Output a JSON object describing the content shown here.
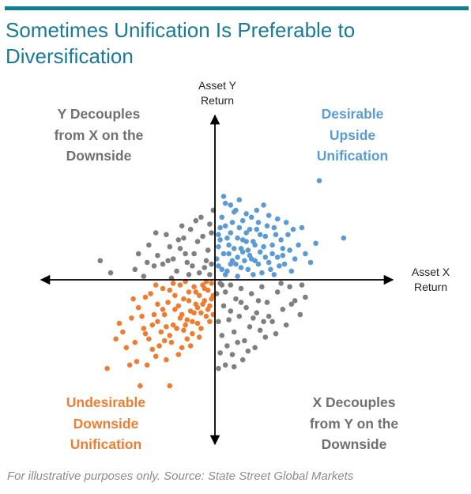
{
  "title": "Sometimes Unification Is Preferable to Diversification",
  "footer": "For illustrative purposes only. Source: State Street Global Markets",
  "colors": {
    "accent_bar": "#117f8f",
    "title": "#1a7a96",
    "gray": "#7f7f7f",
    "blue": "#5b9bd5",
    "orange": "#ed7d31"
  },
  "axes": {
    "y_label": [
      "Asset Y",
      "Return"
    ],
    "x_label": [
      "Asset X",
      "Return"
    ]
  },
  "quadrants": {
    "top_left": [
      "Y Decouples",
      "from X on the",
      "Downside"
    ],
    "top_right": [
      "Desirable",
      "Upside",
      "Unification"
    ],
    "bottom_left": [
      "Undesirable",
      "Downside",
      "Unification"
    ],
    "bottom_right": [
      "X Decouples",
      "from Y on the",
      "Downside"
    ]
  },
  "chart_data": {
    "type": "scatter",
    "title": "Sometimes Unification Is Preferable to Diversification",
    "xlabel": "Asset X Return",
    "ylabel": "Asset Y Return",
    "xlim": [
      -10,
      10
    ],
    "ylim": [
      -10,
      10
    ],
    "grid": false,
    "legend": "none",
    "series": [
      {
        "color": "#5b9bd5",
        "points": [
          [
            6.0,
            5.7
          ],
          [
            7.4,
            2.4
          ],
          [
            5.8,
            2.1
          ],
          [
            5.2,
            1.5
          ],
          [
            4.6,
            1.2
          ],
          [
            4.2,
            2.6
          ],
          [
            3.9,
            1.8
          ],
          [
            3.6,
            1.3
          ],
          [
            3.3,
            2.0
          ],
          [
            3.1,
            1.0
          ],
          [
            2.9,
            2.5
          ],
          [
            2.6,
            1.6
          ],
          [
            2.4,
            2.9
          ],
          [
            2.2,
            2.2
          ],
          [
            2.0,
            1.4
          ],
          [
            1.8,
            2.7
          ],
          [
            1.6,
            3.4
          ],
          [
            1.5,
            1.8
          ],
          [
            1.3,
            2.4
          ],
          [
            1.1,
            3.9
          ],
          [
            1.0,
            1.1
          ],
          [
            0.8,
            2.0
          ],
          [
            0.6,
            3.1
          ],
          [
            0.5,
            1.5
          ],
          [
            0.3,
            2.3
          ],
          [
            0.2,
            0.8
          ],
          [
            0.4,
            3.6
          ],
          [
            0.7,
            0.5
          ],
          [
            1.2,
            0.9
          ],
          [
            1.9,
            0.6
          ],
          [
            2.3,
            1.1
          ],
          [
            2.7,
            0.4
          ],
          [
            0.9,
            4.3
          ],
          [
            0.5,
            4.8
          ],
          [
            1.4,
            4.6
          ],
          [
            2.1,
            3.6
          ],
          [
            2.5,
            3.3
          ],
          [
            3.0,
            3.1
          ],
          [
            3.4,
            3.0
          ],
          [
            3.8,
            2.3
          ],
          [
            4.3,
            1.7
          ],
          [
            1.7,
            1.1
          ],
          [
            0.2,
            1.9
          ],
          [
            0.9,
            2.7
          ],
          [
            1.6,
            2.3
          ],
          [
            2.8,
            1.9
          ],
          [
            3.5,
            2.6
          ],
          [
            4.0,
            0.9
          ],
          [
            0.6,
            0.3
          ],
          [
            1.3,
            0.2
          ],
          [
            2.2,
            0.3
          ],
          [
            3.2,
            0.6
          ],
          [
            0.3,
            3.0
          ],
          [
            1.0,
            3.3
          ],
          [
            1.8,
            3.8
          ],
          [
            2.4,
            4.0
          ],
          [
            3.1,
            3.7
          ],
          [
            4.1,
            3.3
          ],
          [
            4.8,
            2.0
          ],
          [
            5.5,
            1.0
          ],
          [
            0.1,
            1.2
          ],
          [
            0.4,
            0.6
          ],
          [
            0.8,
            1.5
          ],
          [
            1.5,
            0.7
          ],
          [
            2.6,
            2.6
          ],
          [
            3.3,
            1.5
          ],
          [
            3.7,
            0.8
          ],
          [
            1.1,
            1.8
          ],
          [
            1.9,
            1.7
          ],
          [
            2.3,
            2.0
          ],
          [
            2.9,
            1.3
          ],
          [
            0.7,
            2.4
          ],
          [
            1.4,
            3.0
          ],
          [
            2.0,
            2.9
          ],
          [
            4.5,
            2.9
          ],
          [
            5.0,
            3.0
          ],
          [
            3.6,
            3.5
          ],
          [
            2.8,
            4.3
          ],
          [
            1.2,
            4.0
          ],
          [
            0.6,
            4.4
          ],
          [
            3.9,
            1.4
          ],
          [
            4.4,
            0.5
          ],
          [
            2.1,
            1.2
          ],
          [
            1.6,
            1.6
          ],
          [
            0.9,
            0.9
          ],
          [
            0.2,
            2.6
          ],
          [
            3.4,
            0.3
          ],
          [
            2.5,
            0.9
          ],
          [
            1.8,
            2.2
          ],
          [
            1.3,
            1.3
          ]
        ]
      },
      {
        "color": "#ed7d31",
        "points": [
          [
            -6.2,
            -5.1
          ],
          [
            -4.3,
            -6.1
          ],
          [
            -2.6,
            -6.1
          ],
          [
            -5.5,
            -2.5
          ],
          [
            -5.1,
            -3.9
          ],
          [
            -4.6,
            -3.6
          ],
          [
            -4.2,
            -2.1
          ],
          [
            -4.0,
            -1.0
          ],
          [
            -3.8,
            -3.4
          ],
          [
            -3.6,
            -2.6
          ],
          [
            -3.4,
            -4.4
          ],
          [
            -3.3,
            -1.4
          ],
          [
            -3.1,
            -3.0
          ],
          [
            -2.9,
            -2.0
          ],
          [
            -2.8,
            -4.6
          ],
          [
            -2.6,
            -0.6
          ],
          [
            -2.5,
            -3.6
          ],
          [
            -2.3,
            -1.7
          ],
          [
            -2.2,
            -2.8
          ],
          [
            -2.0,
            -0.3
          ],
          [
            -1.9,
            -3.9
          ],
          [
            -1.8,
            -1.1
          ],
          [
            -1.6,
            -2.3
          ],
          [
            -1.5,
            -0.7
          ],
          [
            -1.4,
            -1.8
          ],
          [
            -1.3,
            -3.1
          ],
          [
            -1.2,
            -0.4
          ],
          [
            -1.1,
            -1.4
          ],
          [
            -1.0,
            -2.5
          ],
          [
            -0.9,
            -0.9
          ],
          [
            -0.8,
            -1.9
          ],
          [
            -0.7,
            -0.3
          ],
          [
            -0.6,
            -1.2
          ],
          [
            -0.5,
            -2.1
          ],
          [
            -0.4,
            -0.6
          ],
          [
            -0.3,
            -1.5
          ],
          [
            -0.2,
            -0.2
          ],
          [
            -0.1,
            -0.9
          ],
          [
            -4.4,
            -1.6
          ],
          [
            -3.7,
            -0.8
          ],
          [
            -3.0,
            -0.5
          ],
          [
            -2.4,
            -0.2
          ],
          [
            -1.7,
            -0.1
          ],
          [
            -2.7,
            -1.3
          ],
          [
            -3.5,
            -2.0
          ],
          [
            -4.1,
            -2.8
          ],
          [
            -4.8,
            -2.2
          ],
          [
            -5.7,
            -3.4
          ],
          [
            -4.9,
            -4.9
          ],
          [
            -3.9,
            -4.9
          ],
          [
            -3.2,
            -3.8
          ],
          [
            -2.1,
            -4.3
          ],
          [
            -1.6,
            -3.4
          ],
          [
            -2.4,
            -2.6
          ],
          [
            -1.9,
            -2.0
          ],
          [
            -1.3,
            -2.4
          ],
          [
            -0.8,
            -2.8
          ],
          [
            -0.4,
            -1.7
          ],
          [
            -0.2,
            -1.1
          ],
          [
            -1.0,
            -1.6
          ],
          [
            -1.5,
            -1.2
          ],
          [
            -2.1,
            -1.5
          ],
          [
            -2.8,
            -2.7
          ],
          [
            -3.3,
            -2.4
          ],
          [
            -1.8,
            -2.9
          ],
          [
            -0.6,
            -0.5
          ],
          [
            -0.3,
            -2.4
          ],
          [
            -0.9,
            -3.3
          ],
          [
            -1.4,
            -3.8
          ],
          [
            -2.6,
            -3.2
          ],
          [
            -3.6,
            -4.0
          ],
          [
            -4.5,
            -4.7
          ],
          [
            -5.3,
            -3.0
          ],
          [
            -4.7,
            -1.1
          ],
          [
            -3.4,
            -0.3
          ],
          [
            -2.3,
            -0.9
          ],
          [
            -1.1,
            -0.7
          ],
          [
            -0.5,
            -0.1
          ],
          [
            -1.7,
            -2.6
          ],
          [
            -2.9,
            -3.5
          ],
          [
            -1.2,
            -1.9
          ],
          [
            -0.7,
            -1.4
          ],
          [
            -0.1,
            -2.0
          ],
          [
            -2.0,
            -2.2
          ],
          [
            -3.0,
            -1.7
          ],
          [
            -4.0,
            -3.1
          ]
        ]
      },
      {
        "color": "#7f7f7f",
        "points": [
          [
            -6.6,
            1.1
          ],
          [
            -6.0,
            0.4
          ],
          [
            -4.4,
            1.5
          ],
          [
            -4.1,
            0.2
          ],
          [
            -3.8,
            2.0
          ],
          [
            -3.5,
            0.8
          ],
          [
            -3.3,
            1.4
          ],
          [
            -3.0,
            0.9
          ],
          [
            -2.8,
            2.6
          ],
          [
            -2.6,
            1.9
          ],
          [
            -2.4,
            1.2
          ],
          [
            -2.2,
            0.5
          ],
          [
            -2.0,
            1.8
          ],
          [
            -1.8,
            2.4
          ],
          [
            -1.6,
            1.0
          ],
          [
            -1.4,
            2.9
          ],
          [
            -1.2,
            1.5
          ],
          [
            -1.0,
            2.2
          ],
          [
            -0.8,
            3.6
          ],
          [
            -0.6,
            0.7
          ],
          [
            -0.4,
            1.7
          ],
          [
            -0.2,
            2.7
          ],
          [
            -0.1,
            4.0
          ],
          [
            -0.3,
            0.3
          ],
          [
            -0.9,
            0.4
          ],
          [
            -1.5,
            0.3
          ],
          [
            -2.5,
            0.1
          ],
          [
            -3.4,
            2.7
          ],
          [
            -1.9,
            3.1
          ],
          [
            -1.1,
            3.4
          ],
          [
            -0.5,
            1.1
          ],
          [
            -0.7,
            2.5
          ],
          [
            -1.3,
            0.8
          ],
          [
            -1.7,
            1.5
          ],
          [
            -2.7,
            1.1
          ],
          [
            -3.9,
            1.0
          ],
          [
            -4.6,
            0.6
          ],
          [
            -2.1,
            2.3
          ],
          [
            -0.3,
            3.2
          ],
          [
            -0.2,
            0.9
          ],
          [
            0.3,
            -0.2
          ],
          [
            0.6,
            -0.7
          ],
          [
            0.9,
            -0.3
          ],
          [
            1.2,
            -1.1
          ],
          [
            1.5,
            -0.5
          ],
          [
            1.8,
            -1.6
          ],
          [
            2.1,
            -0.8
          ],
          [
            2.4,
            -1.9
          ],
          [
            2.7,
            -0.4
          ],
          [
            3.0,
            -1.3
          ],
          [
            3.3,
            -2.4
          ],
          [
            3.6,
            -0.7
          ],
          [
            3.9,
            -1.7
          ],
          [
            4.3,
            -0.4
          ],
          [
            4.6,
            -1.2
          ],
          [
            4.9,
            -2.0
          ],
          [
            5.2,
            -1.0
          ],
          [
            0.5,
            -1.5
          ],
          [
            0.8,
            -2.3
          ],
          [
            1.1,
            -3.0
          ],
          [
            1.4,
            -2.1
          ],
          [
            1.7,
            -3.5
          ],
          [
            2.0,
            -2.7
          ],
          [
            2.3,
            -3.9
          ],
          [
            2.6,
            -2.9
          ],
          [
            2.9,
            -3.3
          ],
          [
            0.4,
            -3.2
          ],
          [
            0.7,
            -3.8
          ],
          [
            1.0,
            -4.3
          ],
          [
            1.3,
            -3.6
          ],
          [
            1.6,
            -4.6
          ],
          [
            0.2,
            -2.4
          ],
          [
            0.3,
            -4.2
          ],
          [
            0.6,
            -4.9
          ],
          [
            1.9,
            -4.1
          ],
          [
            2.2,
            -2.2
          ],
          [
            3.1,
            -2.1
          ],
          [
            3.5,
            -3.1
          ],
          [
            4.1,
            -2.6
          ],
          [
            4.4,
            -1.4
          ],
          [
            0.9,
            -1.8
          ],
          [
            1.5,
            -1.3
          ],
          [
            2.5,
            -1.2
          ],
          [
            3.8,
            -0.2
          ],
          [
            5.0,
            -0.3
          ],
          [
            0.1,
            -0.8
          ],
          [
            0.4,
            -0.3
          ],
          [
            2.8,
            -2.4
          ],
          [
            0.2,
            -5.1
          ],
          [
            1.1,
            -5.0
          ]
        ]
      }
    ]
  }
}
